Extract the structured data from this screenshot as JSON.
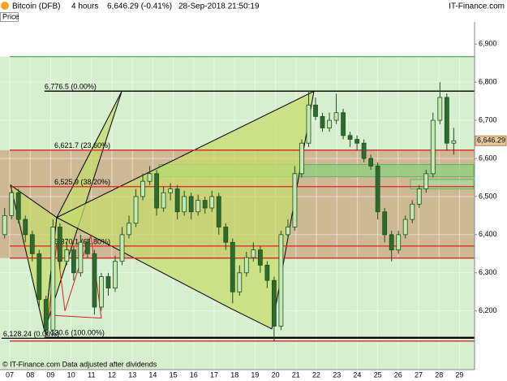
{
  "header": {
    "instrument": "Bitcoin (DFB)",
    "period": "4 hours",
    "quote": "6,646.29 (-0.41%)",
    "timestamp": "28-Sep-2018 21:50:19",
    "brand": "IT-Finance.com",
    "panel": "Price",
    "footer": "© IT-Finance.com  Data adjusted after dividends"
  },
  "chart_data": {
    "type": "candlestick",
    "categories": [
      "07",
      "08",
      "09",
      "10",
      "11",
      "12",
      "13",
      "14",
      "15",
      "16",
      "17",
      "18",
      "19",
      "20",
      "21",
      "22",
      "23",
      "24",
      "25",
      "26",
      "27",
      "28",
      "29"
    ],
    "ylim": [
      6046,
      6958
    ],
    "yticks": [
      {
        "value": 6200,
        "label": "6,200"
      },
      {
        "value": 6300,
        "label": "6,300"
      },
      {
        "value": 6400,
        "label": "6,400"
      },
      {
        "value": 6500,
        "label": "6,500"
      },
      {
        "value": 6600,
        "label": "6,600"
      },
      {
        "value": 6700,
        "label": "6,700"
      },
      {
        "value": 6800,
        "label": "6,800"
      },
      {
        "value": 6900,
        "label": "6,900"
      }
    ],
    "last_price": {
      "value": 6646.29,
      "label": "6,646.29"
    },
    "up_color": "#c5e8b4",
    "down_color": "#2e6b2e",
    "wick_color": "#1d4f1d",
    "candles": [
      [
        6400,
        6470,
        6390,
        6450
      ],
      [
        6450,
        6530,
        6440,
        6510
      ],
      [
        6510,
        6520,
        6430,
        6440
      ],
      [
        6440,
        6450,
        6380,
        6400
      ],
      [
        6400,
        6410,
        6330,
        6350
      ],
      [
        6350,
        6360,
        6210,
        6230
      ],
      [
        6230,
        6240,
        6128.24,
        6150
      ],
      [
        6150,
        6440,
        6140,
        6420
      ],
      [
        6420,
        6430,
        6310,
        6330
      ],
      [
        6330,
        6380,
        6320,
        6360
      ],
      [
        6360,
        6370,
        6280,
        6300
      ],
      [
        6300,
        6400,
        6290,
        6380
      ],
      [
        6380,
        6390,
        6340,
        6350
      ],
      [
        6350,
        6360,
        6190,
        6210
      ],
      [
        6210,
        6300,
        6200,
        6290
      ],
      [
        6290,
        6300,
        6240,
        6260
      ],
      [
        6260,
        6345,
        6250,
        6330
      ],
      [
        6330,
        6420,
        6320,
        6400
      ],
      [
        6400,
        6450,
        6390,
        6430
      ],
      [
        6430,
        6520,
        6420,
        6500
      ],
      [
        6500,
        6560,
        6490,
        6540
      ],
      [
        6540,
        6580,
        6530,
        6560
      ],
      [
        6560,
        6570,
        6450,
        6470
      ],
      [
        6470,
        6525,
        6460,
        6510
      ],
      [
        6510,
        6535,
        6490,
        6520
      ],
      [
        6520,
        6530,
        6440,
        6460
      ],
      [
        6460,
        6515,
        6450,
        6500
      ],
      [
        6500,
        6510,
        6440,
        6460
      ],
      [
        6460,
        6505,
        6450,
        6490
      ],
      [
        6490,
        6500,
        6455,
        6470
      ],
      [
        6470,
        6515,
        6460,
        6500
      ],
      [
        6500,
        6510,
        6400,
        6420
      ],
      [
        6420,
        6430,
        6360,
        6380
      ],
      [
        6380,
        6390,
        6220,
        6250
      ],
      [
        6250,
        6320,
        6240,
        6300
      ],
      [
        6300,
        6355,
        6290,
        6340
      ],
      [
        6340,
        6380,
        6330,
        6360
      ],
      [
        6360,
        6370,
        6300,
        6320
      ],
      [
        6320,
        6330,
        6260,
        6280
      ],
      [
        6280,
        6290,
        6120,
        6160
      ],
      [
        6160,
        6410,
        6150,
        6400
      ],
      [
        6400,
        6440,
        6390,
        6420
      ],
      [
        6420,
        6580,
        6410,
        6560
      ],
      [
        6560,
        6650,
        6550,
        6640
      ],
      [
        6640,
        6776.5,
        6630,
        6740
      ],
      [
        6740,
        6760,
        6700,
        6710
      ],
      [
        6710,
        6720,
        6670,
        6680
      ],
      [
        6680,
        6720,
        6670,
        6700
      ],
      [
        6700,
        6770,
        6690,
        6720
      ],
      [
        6720,
        6730,
        6650,
        6660
      ],
      [
        6660,
        6670,
        6630,
        6650
      ],
      [
        6650,
        6660,
        6620,
        6640
      ],
      [
        6640,
        6650,
        6590,
        6600
      ],
      [
        6600,
        6610,
        6570,
        6580
      ],
      [
        6580,
        6590,
        6440,
        6460
      ],
      [
        6460,
        6470,
        6380,
        6400
      ],
      [
        6400,
        6410,
        6330,
        6360
      ],
      [
        6360,
        6410,
        6350,
        6400
      ],
      [
        6400,
        6450,
        6390,
        6440
      ],
      [
        6440,
        6490,
        6430,
        6480
      ],
      [
        6480,
        6530,
        6470,
        6520
      ],
      [
        6520,
        6570,
        6510,
        6560
      ],
      [
        6560,
        6720,
        6550,
        6700
      ],
      [
        6700,
        6800,
        6690,
        6760
      ],
      [
        6760,
        6770,
        6620,
        6640
      ],
      [
        6640,
        6680,
        6610,
        6646.29
      ]
    ],
    "bands": [
      {
        "from": 6046,
        "to": 6867,
        "color": "#d6efcf"
      },
      {
        "from": 6338.6,
        "to": 6621.7,
        "color": "#cdb994"
      }
    ],
    "boxes": [
      {
        "x": [
          7.3,
          22.7
        ],
        "y": [
          6552,
          6584
        ],
        "color": "#8fcf7f"
      },
      {
        "x": [
          19.6,
          22.7
        ],
        "y": [
          6520,
          6545
        ],
        "color": "#a8d898"
      }
    ],
    "hlines": [
      {
        "value": 6867,
        "color": "#5cb85c",
        "from": 0
      },
      {
        "value": 6776.5,
        "color": "#000000",
        "from": 1.7,
        "label": "6,776.5 (0.00%)"
      },
      {
        "value": 6621.7,
        "color": "#e02020",
        "from": 0,
        "label": "6,621.7 (23.60%)"
      },
      {
        "value": 6525.9,
        "color": "#e02020",
        "from": 0,
        "label": "6,525.9 (38.20%)"
      },
      {
        "value": 6370.1,
        "color": "#e02020",
        "from": 0,
        "label": "6,370.1 (61.80%)"
      },
      {
        "value": 6338.6,
        "color": "#e02020",
        "from": 0
      },
      {
        "value": 6130.6,
        "color": "#000000",
        "from": 1.7,
        "label": "6,130.6 (100.00%)"
      },
      {
        "value": 6128.24,
        "color": "#000000",
        "from": -0.4,
        "label": "6,128.24 (0.00%)"
      },
      {
        "value": 6121,
        "color": "#e02020",
        "from": 0
      }
    ],
    "drawings": [
      {
        "x": [
          0.04,
          1.7,
          2.3
        ],
        "y": [
          6530,
          6147,
          6445
        ],
        "fill": "#c6dc6e",
        "stroke": "#000000"
      },
      {
        "x": [
          2.3,
          5.48,
          1.7
        ],
        "y": [
          6445,
          6776,
          6147
        ],
        "fill": "#c6dc6e",
        "stroke": "#000000"
      },
      {
        "x": [
          2.3,
          14.88,
          12.82,
          10.83
        ],
        "y": [
          6445,
          6776,
          6153,
          6206
        ],
        "fill": "#c6dc6e",
        "stroke": "#000000"
      },
      {
        "x": [
          1.9,
          2.3,
          2.7,
          3.37,
          3.97,
          4.48,
          1.9
        ],
        "y": [
          6189,
          6377,
          6200,
          6313,
          6398,
          6181,
          6189
        ],
        "fill": "none",
        "stroke": "#e02020"
      }
    ]
  }
}
